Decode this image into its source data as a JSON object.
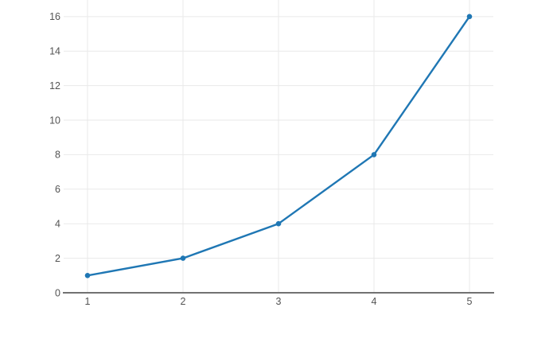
{
  "chart_data": {
    "type": "line",
    "x": [
      1,
      2,
      3,
      4,
      5
    ],
    "y": [
      1,
      2,
      4,
      8,
      16
    ],
    "title": "",
    "xlabel": "",
    "ylabel": "",
    "x_tick_labels": [
      "1",
      "2",
      "3",
      "4",
      "5"
    ],
    "y_tick_labels": [
      "0",
      "2",
      "4",
      "6",
      "8",
      "10",
      "12",
      "14",
      "16"
    ],
    "x_ticks": [
      1,
      2,
      3,
      4,
      5
    ],
    "y_ticks": [
      0,
      2,
      4,
      6,
      8,
      10,
      12,
      14,
      16
    ],
    "xlim": [
      0.75,
      5.25
    ],
    "ylim": [
      0,
      16.96
    ],
    "grid": true,
    "legend": false,
    "marker_style": "circle",
    "line_color": "#1f77b4",
    "marker_color": "#1f77b4",
    "grid_color": "#e9e9e9",
    "axis_line_color": "#444444",
    "tick_label_color": "#535353",
    "background_color": "#ffffff"
  }
}
